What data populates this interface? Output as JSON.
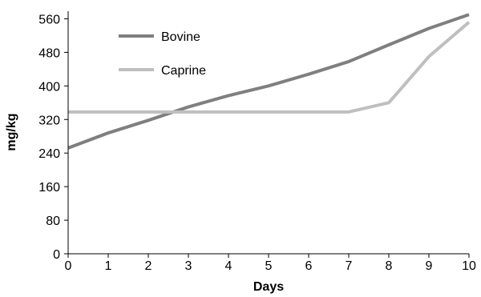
{
  "chart_data": {
    "type": "line",
    "title": "",
    "xlabel": "Days",
    "ylabel": "mg/kg",
    "x": [
      0,
      1,
      2,
      3,
      4,
      5,
      6,
      7,
      8,
      9,
      10
    ],
    "xlim": [
      0,
      10
    ],
    "ylim": [
      0,
      580
    ],
    "xticks": [
      "0",
      "1",
      "2",
      "3",
      "4",
      "5",
      "6",
      "7",
      "8",
      "9",
      "10"
    ],
    "yticks": [
      "0",
      "80",
      "160",
      "240",
      "320",
      "400",
      "480",
      "560"
    ],
    "grid": false,
    "legend_position": "top-left",
    "series": [
      {
        "name": "Bovine",
        "color": "#7f7f7f",
        "values": [
          252,
          288,
          318,
          350,
          377,
          400,
          428,
          458,
          498,
          537,
          570
        ]
      },
      {
        "name": "Caprine",
        "color": "#bfbfbf",
        "values": [
          338,
          338,
          338,
          338,
          338,
          338,
          338,
          338,
          360,
          470,
          552
        ]
      }
    ]
  }
}
